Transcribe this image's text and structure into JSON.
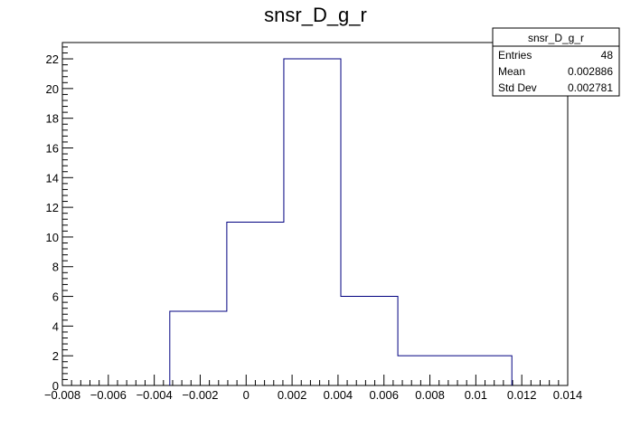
{
  "chart_data": {
    "type": "histogram",
    "title": "snsr_D_g_r",
    "xlabel": "",
    "ylabel": "",
    "xlim": [
      -0.008,
      0.014
    ],
    "ylim": [
      0,
      23.1
    ],
    "x_ticks": [
      -0.008,
      -0.006,
      -0.004,
      -0.002,
      0,
      0.002,
      0.004,
      0.006,
      0.008,
      0.01,
      0.012,
      0.014
    ],
    "x_tick_labels": [
      "−0.008",
      "−0.006",
      "−0.004",
      "−0.002",
      "0",
      "0.002",
      "0.004",
      "0.006",
      "0.008",
      "0.01",
      "0.012",
      "0.014"
    ],
    "y_ticks": [
      0,
      2,
      4,
      6,
      8,
      10,
      12,
      14,
      16,
      18,
      20,
      22
    ],
    "y_tick_labels": [
      "0",
      "2",
      "4",
      "6",
      "8",
      "10",
      "12",
      "14",
      "16",
      "18",
      "20",
      "22"
    ],
    "bin_edges": [
      -0.003324,
      -0.000842,
      0.00164,
      0.004122,
      0.006604,
      0.009086,
      0.011568
    ],
    "counts": [
      5,
      11,
      22,
      6,
      2,
      2
    ],
    "line_color": "#000080",
    "stats": {
      "name": "snsr_D_g_r",
      "rows": [
        {
          "label": "Entries",
          "value": "48"
        },
        {
          "label": "Mean",
          "value": "0.002886"
        },
        {
          "label": "Std Dev",
          "value": "0.002781"
        }
      ]
    }
  }
}
